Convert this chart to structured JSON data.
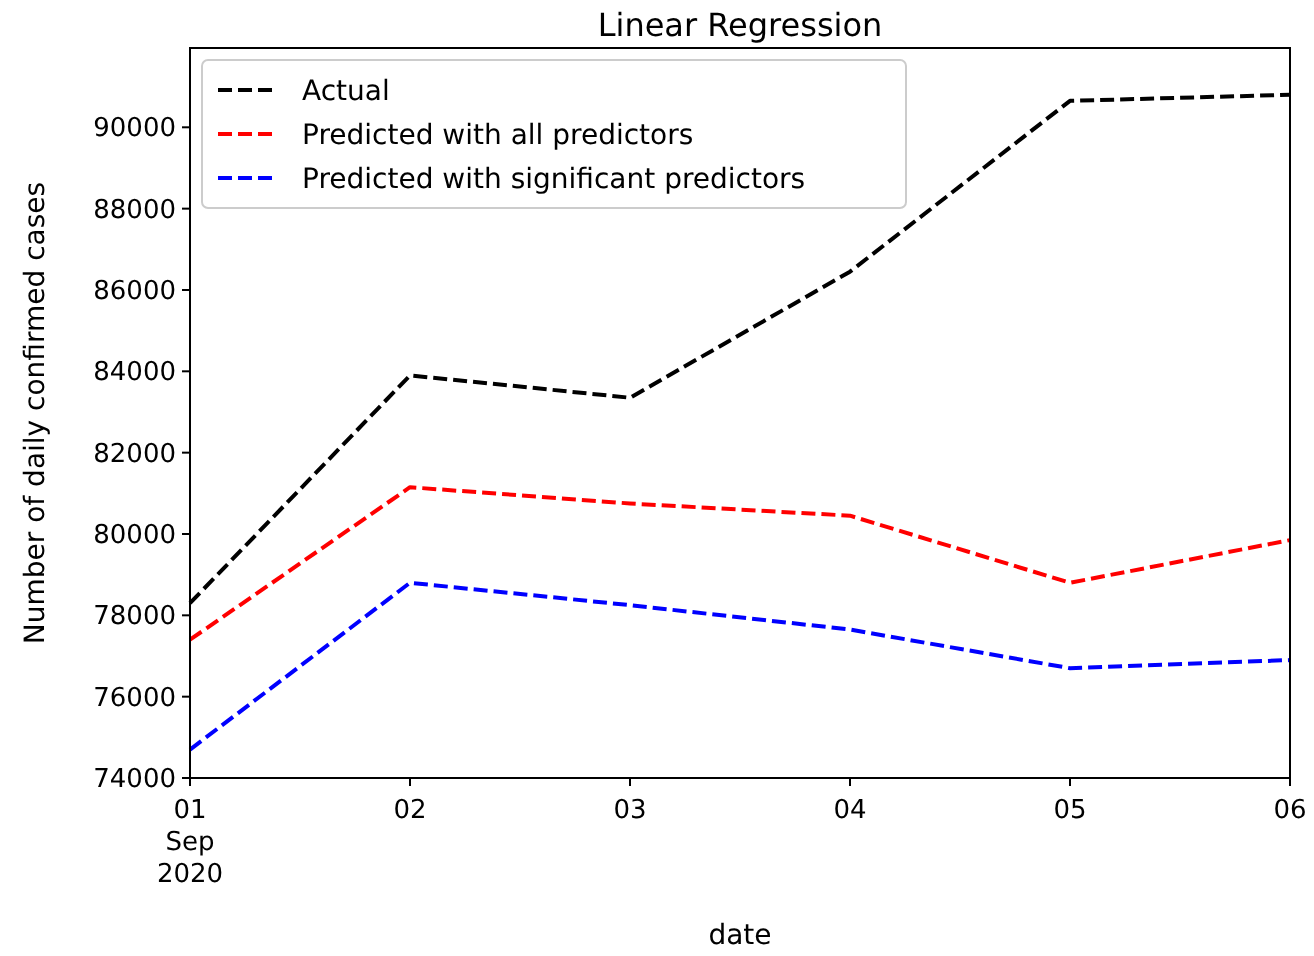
{
  "chart_data": {
    "type": "line",
    "title": "Linear Regression",
    "xlabel": "date",
    "ylabel": "Number of daily confirmed cases",
    "x": [
      "2020-09-01",
      "2020-09-02",
      "2020-09-03",
      "2020-09-04",
      "2020-09-05",
      "2020-09-06"
    ],
    "series": [
      {
        "name": "Actual",
        "color": "#000000",
        "values": [
          78300,
          83900,
          83350,
          86450,
          90650,
          90800
        ]
      },
      {
        "name": "Predicted with all predictors",
        "color": "#ff0000",
        "values": [
          77400,
          81150,
          80750,
          80450,
          78800,
          79850
        ]
      },
      {
        "name": "Predicted with significant predictors",
        "color": "#0000ff",
        "values": [
          74700,
          78800,
          78250,
          77650,
          76700,
          76900
        ]
      }
    ],
    "xlim": [
      "2020-09-01",
      "2020-09-06"
    ],
    "xticks": [
      {
        "value": "2020-09-01",
        "label": "01\nSep\n2020"
      },
      {
        "value": "2020-09-02",
        "label": "02"
      },
      {
        "value": "2020-09-03",
        "label": "03"
      },
      {
        "value": "2020-09-04",
        "label": "04"
      },
      {
        "value": "2020-09-05",
        "label": "05"
      },
      {
        "value": "2020-09-06",
        "label": "06"
      }
    ],
    "ylim": [
      74000,
      91950
    ],
    "yticks": [
      74000,
      76000,
      78000,
      80000,
      82000,
      84000,
      86000,
      88000,
      90000
    ],
    "legend": "top left",
    "line_style": "dashed",
    "grid": false
  }
}
